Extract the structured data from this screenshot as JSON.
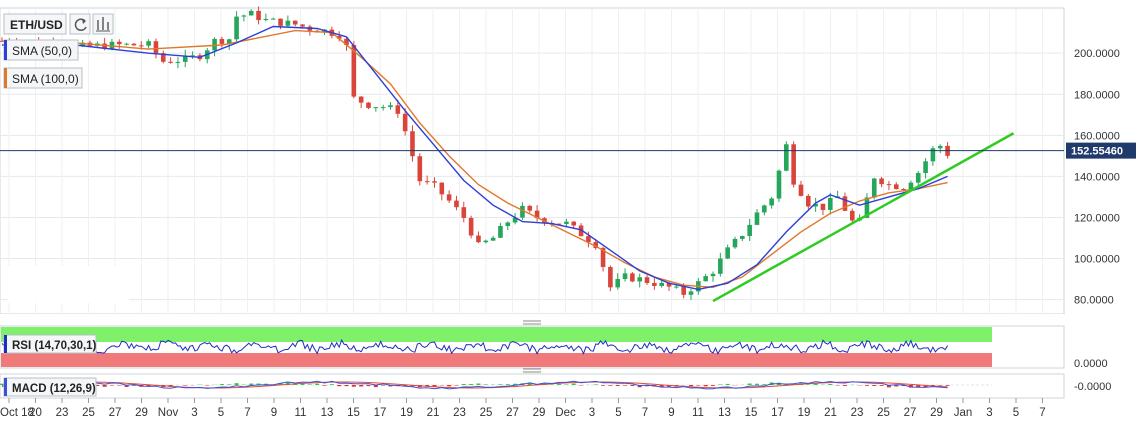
{
  "toolbar": {
    "symbol": "ETH/USD",
    "refresh_icon": "refresh-icon",
    "indicators_icon": "bar-chart-icon"
  },
  "legend": {
    "sma50": {
      "label": "SMA (50,0)",
      "color": "#2c3fd6"
    },
    "sma100": {
      "label": "SMA (100,0)",
      "color": "#e0782c"
    }
  },
  "colors": {
    "bull": "#26a65b",
    "bear": "#d9453b",
    "sma50": "#2c3fd6",
    "sma100": "#e0782c",
    "trendline": "#2ecc1f",
    "price_line": "#1f3a6b",
    "price_badge": "#1f3a6b",
    "rsi_upper_band": "#7ff06a",
    "rsi_lower_band": "#f07a7a",
    "rsi_line": "#1a2fbf",
    "macd_fast": "#3a52d8",
    "macd_slow": "#e24b3b",
    "macd_hist_pos": "#2ecc40",
    "macd_hist_neg": "#e23030"
  },
  "chart_data": [
    {
      "type": "candlestick",
      "symbol": "ETH/USD",
      "ylim": [
        73,
        222
      ],
      "y_ticks": [
        {
          "value": 80,
          "label": "80.0000"
        },
        {
          "value": 100,
          "label": "100.0000"
        },
        {
          "value": 120,
          "label": "120.0000"
        },
        {
          "value": 140,
          "label": "140.0000"
        },
        {
          "value": 160,
          "label": "160.0000"
        },
        {
          "value": 180,
          "label": "180.0000"
        },
        {
          "value": 200,
          "label": "200.0000"
        }
      ],
      "x_ticks": [
        "Oct 18",
        "20",
        "23",
        "25",
        "27",
        "29",
        "Nov",
        "3",
        "5",
        "7",
        "9",
        "11",
        "13",
        "15",
        "17",
        "19",
        "21",
        "23",
        "25",
        "27",
        "29",
        "Dec",
        "3",
        "5",
        "7",
        "9",
        "11",
        "13",
        "15",
        "17",
        "19",
        "21",
        "23",
        "25",
        "27",
        "29",
        "Jan",
        "3",
        "5",
        "7"
      ],
      "current_price": 152.5546,
      "current_price_label": "152.55460",
      "close_path": [
        [
          0,
          206
        ],
        [
          5,
          205
        ],
        [
          10,
          203
        ],
        [
          15,
          204
        ],
        [
          20,
          204
        ],
        [
          22,
          196
        ],
        [
          25,
          197
        ],
        [
          27,
          199
        ],
        [
          29,
          206
        ],
        [
          31,
          207
        ],
        [
          32,
          218
        ],
        [
          34,
          219
        ],
        [
          36,
          216
        ],
        [
          38,
          215
        ],
        [
          40,
          214
        ],
        [
          42,
          212
        ],
        [
          44,
          211
        ],
        [
          46,
          209
        ],
        [
          47,
          203
        ],
        [
          48,
          178
        ],
        [
          50,
          175
        ],
        [
          52,
          174
        ],
        [
          54,
          172
        ],
        [
          55,
          162
        ],
        [
          57,
          138
        ],
        [
          59,
          135
        ],
        [
          61,
          128
        ],
        [
          63,
          120
        ],
        [
          65,
          106
        ],
        [
          67,
          110
        ],
        [
          69,
          118
        ],
        [
          71,
          124
        ],
        [
          73,
          120
        ],
        [
          75,
          118
        ],
        [
          77,
          117
        ],
        [
          79,
          112
        ],
        [
          81,
          107
        ],
        [
          83,
          86
        ],
        [
          85,
          91
        ],
        [
          87,
          90
        ],
        [
          89,
          88
        ],
        [
          91,
          86
        ],
        [
          93,
          83
        ],
        [
          95,
          88
        ],
        [
          97,
          94
        ],
        [
          99,
          104
        ],
        [
          101,
          112
        ],
        [
          103,
          122
        ],
        [
          105,
          130
        ],
        [
          107,
          155
        ],
        [
          108,
          138
        ],
        [
          110,
          127
        ],
        [
          112,
          125
        ],
        [
          114,
          130
        ],
        [
          116,
          118
        ],
        [
          117,
          118
        ],
        [
          119,
          140
        ],
        [
          121,
          136
        ],
        [
          123,
          135
        ],
        [
          125,
          142
        ],
        [
          127,
          153
        ],
        [
          128,
          155
        ],
        [
          129,
          151
        ]
      ],
      "sma_50": [
        [
          0,
          204
        ],
        [
          10,
          204
        ],
        [
          20,
          200
        ],
        [
          27,
          198
        ],
        [
          32,
          205
        ],
        [
          37,
          213
        ],
        [
          43,
          212
        ],
        [
          47,
          208
        ],
        [
          51,
          190
        ],
        [
          55,
          172
        ],
        [
          59,
          155
        ],
        [
          63,
          138
        ],
        [
          67,
          126
        ],
        [
          71,
          118
        ],
        [
          75,
          117
        ],
        [
          79,
          114
        ],
        [
          83,
          104
        ],
        [
          87,
          94
        ],
        [
          91,
          88
        ],
        [
          95,
          85
        ],
        [
          99,
          88
        ],
        [
          103,
          97
        ],
        [
          107,
          113
        ],
        [
          111,
          127
        ],
        [
          113,
          131
        ],
        [
          117,
          126
        ],
        [
          121,
          130
        ],
        [
          125,
          134
        ],
        [
          129,
          140
        ]
      ],
      "sma_100": [
        [
          0,
          206
        ],
        [
          10,
          205
        ],
        [
          20,
          202
        ],
        [
          30,
          204
        ],
        [
          40,
          211
        ],
        [
          45,
          210
        ],
        [
          49,
          198
        ],
        [
          53,
          185
        ],
        [
          57,
          166
        ],
        [
          61,
          150
        ],
        [
          65,
          136
        ],
        [
          69,
          127
        ],
        [
          73,
          120
        ],
        [
          77,
          113
        ],
        [
          81,
          106
        ],
        [
          85,
          98
        ],
        [
          89,
          91
        ],
        [
          93,
          87
        ],
        [
          97,
          86
        ],
        [
          101,
          91
        ],
        [
          105,
          102
        ],
        [
          109,
          113
        ],
        [
          113,
          122
        ],
        [
          117,
          128
        ],
        [
          121,
          132
        ],
        [
          125,
          134
        ],
        [
          129,
          137
        ]
      ],
      "trendline": {
        "from": [
          97,
          79.3
        ],
        "to": [
          138,
          161
        ]
      }
    },
    {
      "type": "line",
      "name": "RSI",
      "label": "RSI (14,70,30,1)",
      "ylim": [
        30,
        70
      ],
      "y_ticks": [
        {
          "value": 30,
          "label": "0.0000"
        }
      ]
    },
    {
      "type": "line",
      "name": "MACD",
      "label": "MACD (12,26,9)",
      "y_ticks": [
        {
          "value": 0,
          "label": "-0.0000"
        }
      ]
    }
  ]
}
